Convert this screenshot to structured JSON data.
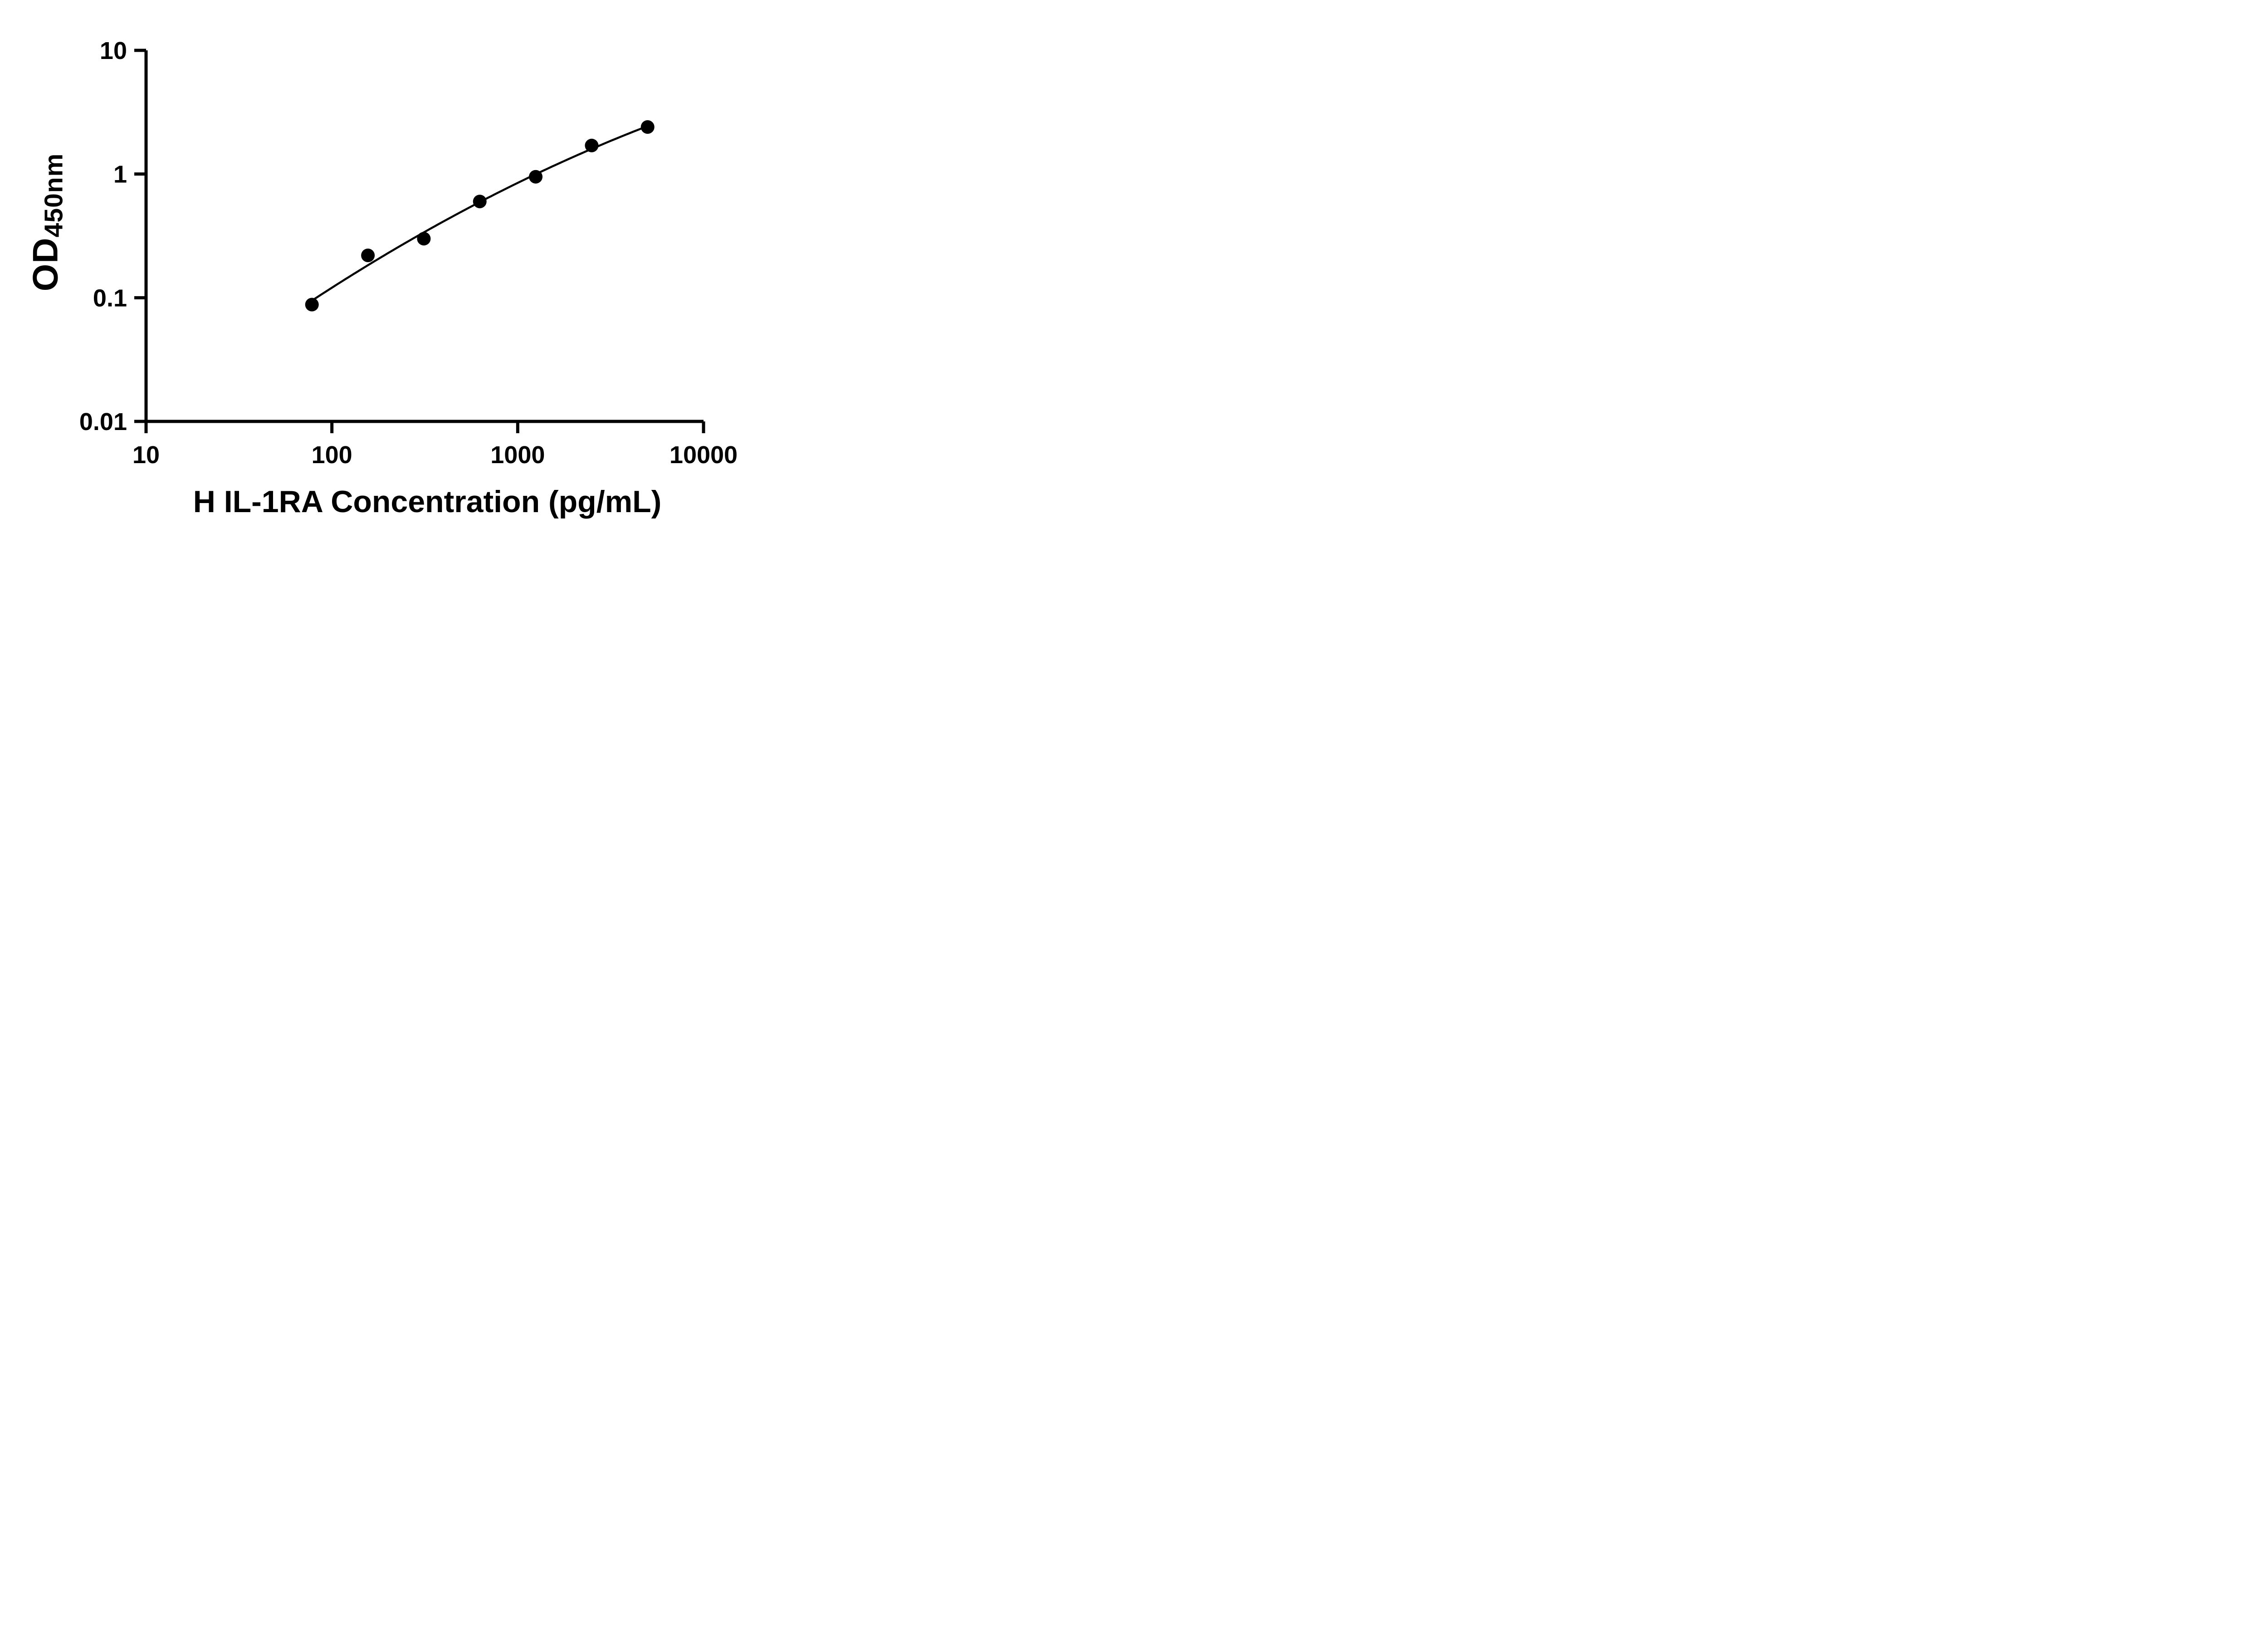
{
  "chart_data": {
    "type": "scatter",
    "title": "",
    "xlabel": "H IL-1RA Concentration (pg/mL)",
    "ylabel": "OD",
    "ylabel_subscript": "450nm",
    "x_scale": "log",
    "y_scale": "log",
    "xlim": [
      10,
      10000
    ],
    "ylim": [
      0.01,
      10
    ],
    "x_ticks": [
      10,
      100,
      1000,
      10000
    ],
    "y_ticks": [
      10,
      1,
      0.1,
      0.01
    ],
    "x": [
      78.125,
      156.25,
      312.5,
      625,
      1250,
      2500,
      5000
    ],
    "y": [
      0.088,
      0.22,
      0.3,
      0.6,
      0.95,
      1.7,
      2.4
    ],
    "fit": "smooth standard curve through points",
    "marker": "filled-circle",
    "marker_color": "#000000",
    "line_color": "#000000",
    "axis_color": "#000000",
    "background": "#ffffff",
    "grid": false,
    "legend": false
  }
}
